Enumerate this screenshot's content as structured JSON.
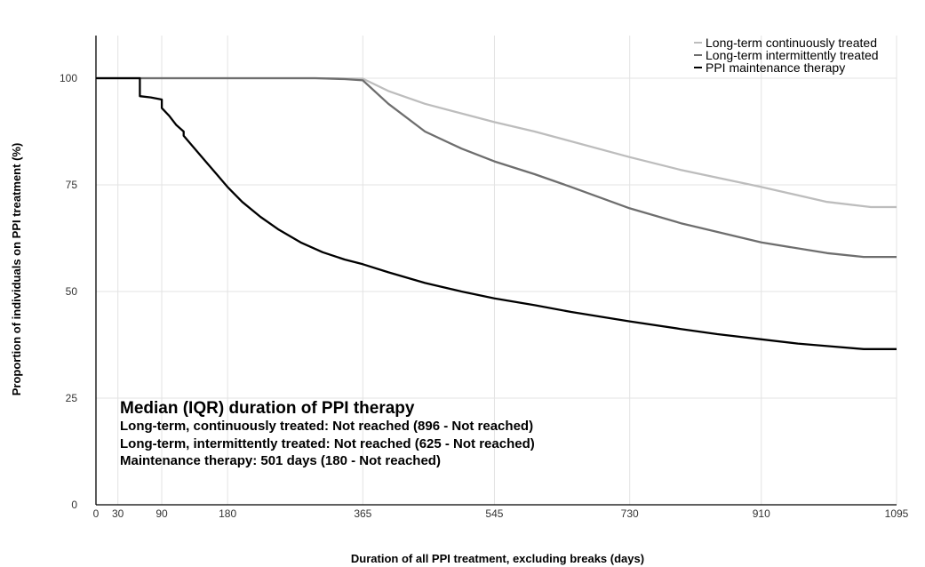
{
  "chart_data": {
    "type": "line",
    "xlabel": "Duration of all PPI treatment, excluding breaks (days)",
    "ylabel": "Proportion of individuals on PPI treatment (%)",
    "xlim": [
      0,
      1095
    ],
    "ylim": [
      0,
      110
    ],
    "x_ticks": [
      0,
      30,
      90,
      180,
      365,
      545,
      730,
      910,
      1095
    ],
    "y_ticks": [
      0,
      25,
      50,
      75,
      100
    ],
    "grid": true,
    "legend_position": "top-right",
    "series": [
      {
        "name": "Long-term continuously treated",
        "color": "#bdbdbd",
        "points": [
          [
            0,
            100
          ],
          [
            300,
            100
          ],
          [
            365,
            99.9
          ],
          [
            400,
            97
          ],
          [
            450,
            94
          ],
          [
            545,
            89.7
          ],
          [
            600,
            87.5
          ],
          [
            730,
            81.5
          ],
          [
            800,
            78.5
          ],
          [
            910,
            74.5
          ],
          [
            1000,
            71
          ],
          [
            1060,
            69.8
          ],
          [
            1095,
            69.8
          ]
        ]
      },
      {
        "name": "Long-term intermittently treated",
        "color": "#6e6e6e",
        "points": [
          [
            0,
            100
          ],
          [
            300,
            100
          ],
          [
            340,
            99.8
          ],
          [
            365,
            99.5
          ],
          [
            400,
            94
          ],
          [
            450,
            87.5
          ],
          [
            500,
            83.5
          ],
          [
            545,
            80.5
          ],
          [
            600,
            77.5
          ],
          [
            650,
            74.5
          ],
          [
            730,
            69.5
          ],
          [
            800,
            66
          ],
          [
            910,
            61.5
          ],
          [
            1000,
            59
          ],
          [
            1050,
            58.1
          ],
          [
            1095,
            58.1
          ]
        ]
      },
      {
        "name": "PPI maintenance therapy",
        "color": "#000000",
        "points": [
          [
            0,
            100
          ],
          [
            60,
            100
          ],
          [
            60,
            95.8
          ],
          [
            75,
            95.5
          ],
          [
            90,
            95
          ],
          [
            90,
            93
          ],
          [
            100,
            91.2
          ],
          [
            110,
            89
          ],
          [
            120,
            87.5
          ],
          [
            120,
            86.5
          ],
          [
            135,
            83.5
          ],
          [
            150,
            80.5
          ],
          [
            165,
            77.5
          ],
          [
            180,
            74.5
          ],
          [
            200,
            71
          ],
          [
            225,
            67.5
          ],
          [
            250,
            64.5
          ],
          [
            280,
            61.5
          ],
          [
            310,
            59.2
          ],
          [
            340,
            57.5
          ],
          [
            365,
            56.4
          ],
          [
            400,
            54.5
          ],
          [
            450,
            52
          ],
          [
            500,
            50
          ],
          [
            545,
            48.4
          ],
          [
            600,
            46.8
          ],
          [
            650,
            45.2
          ],
          [
            730,
            43
          ],
          [
            800,
            41.2
          ],
          [
            850,
            40
          ],
          [
            910,
            38.8
          ],
          [
            960,
            37.8
          ],
          [
            1000,
            37.2
          ],
          [
            1050,
            36.5
          ],
          [
            1095,
            36.5
          ]
        ]
      }
    ],
    "annotation": {
      "title": "Median (IQR) duration of PPI therapy",
      "lines": [
        "Long-term, continuously treated: Not reached (896 - Not reached)",
        "Long-term, intermittently treated: Not reached (625 - Not reached)",
        "Maintenance therapy: 501 days (180 - Not reached)"
      ]
    }
  }
}
